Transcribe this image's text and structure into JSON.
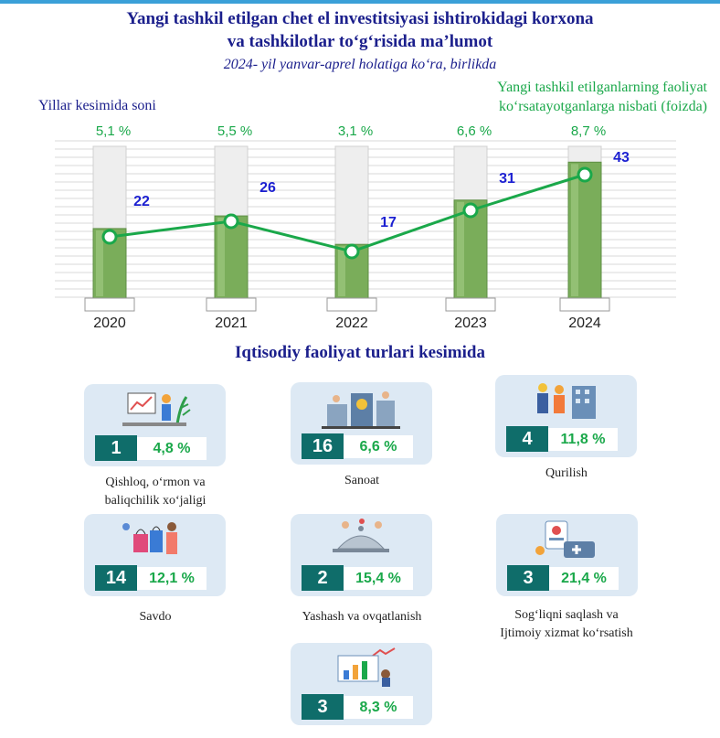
{
  "title_line1": "Yangi tashkil etilgan chet el investitsiyasi ishtirokidagi korxona",
  "title_line2": "va tashkilotlar to‘g‘risida ma’lumot",
  "subtitle": "2024- yil yanvar-aprel holatiga ko‘ra, birlikda",
  "chart_data": {
    "type": "bar",
    "categories": [
      "2020",
      "2021",
      "2022",
      "2023",
      "2024"
    ],
    "series": [
      {
        "values": [
          22,
          26,
          17,
          31,
          43
        ]
      },
      {
        "name": "Yangi tashkil etilganlarning faoliyat ko‘rsatayotganlarga nisbati (foizda)",
        "values": [
          5.1,
          5.5,
          3.1,
          6.6,
          8.7
        ]
      }
    ],
    "value_labels": [
      "22",
      "26",
      "17",
      "31",
      "43"
    ],
    "pct_labels": [
      "5,1 %",
      "5,5 %",
      "3,1 %",
      "6,6 %",
      "8,7 %"
    ],
    "left_axis_label": "Yillar kesimida soni",
    "right_legend_line1": "Yangi tashkil etilganlarning faoliyat",
    "right_legend_line2": "ko‘rsatayotganlarga nisbati (foizda)",
    "ylim": [
      0,
      48
    ],
    "colors": {
      "bar": "#7aad5a",
      "bar_bg": "#eeeeee",
      "line": "#1aa84a",
      "value_text": "#1b1fd1",
      "pct_text": "#1aa84a"
    }
  },
  "section_title": "Iqtisodiy faoliyat turlari kesimida",
  "sectors": [
    {
      "count": "1",
      "pct": "4,8 %",
      "label1": "Qishloq, o‘rmon va",
      "label2": "baliqchilik xo‘jaligi",
      "icon": "agriculture-icon"
    },
    {
      "count": "16",
      "pct": "6,6 %",
      "label1": "Sanoat",
      "label2": "",
      "icon": "industry-icon"
    },
    {
      "count": "4",
      "pct": "11,8 %",
      "label1": "Qurilish",
      "label2": "",
      "icon": "construction-icon"
    },
    {
      "count": "14",
      "pct": "12,1 %",
      "label1": "Savdo",
      "label2": "",
      "icon": "shopping-icon"
    },
    {
      "count": "2",
      "pct": "15,4 %",
      "label1": "Yashash va ovqatlanish",
      "label2": "",
      "icon": "food-service-icon"
    },
    {
      "count": "3",
      "pct": "21,4 %",
      "label1": "Sog‘liqni saqlash va",
      "label2": "Ijtimoiy xizmat ko‘rsatish",
      "icon": "healthcare-icon"
    },
    {
      "count": "3",
      "pct": "8,3 %",
      "label1": "",
      "label2": "",
      "icon": "finance-icon"
    }
  ]
}
